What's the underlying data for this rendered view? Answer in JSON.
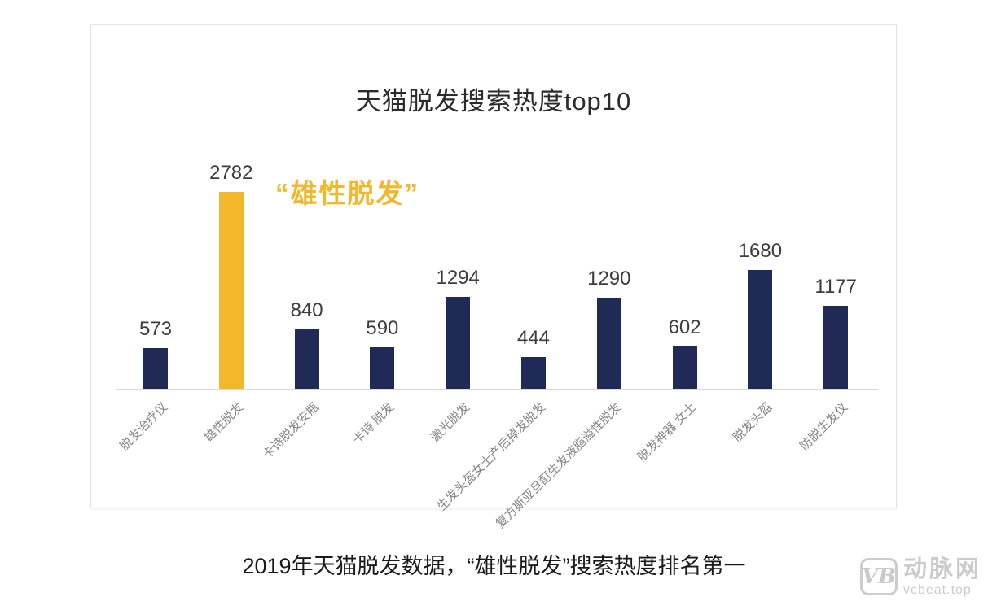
{
  "chart_data": {
    "type": "bar",
    "title": "天猫脱发搜索热度top10",
    "categories": [
      "脱发治疗仪",
      "雄性脱发",
      "卡诗脱发安瓶",
      "卡诗 脱发",
      "激光脱发",
      "生发头盔女士产后掉发脱发",
      "复方斯亚旦酊生发液脂溢性脱发",
      "脱发神器 女士",
      "脱发头盔",
      "防脱生发仪"
    ],
    "values": [
      573,
      2782,
      840,
      590,
      1294,
      444,
      1290,
      602,
      1680,
      1177
    ],
    "value_labels_shown": true,
    "highlight_index": 1,
    "annotation": "“雄性脱发”",
    "bar_color": "#1f2a56",
    "highlight_color": "#f3b72b",
    "annotation_color": "#f3b72b",
    "ylim": [
      0,
      2782
    ],
    "grid": false,
    "legend": "none",
    "x_tick_rotation_deg": 45
  },
  "caption": "2019年天猫脱发数据，“雄性脱发”搜索热度排名第一",
  "watermark": {
    "logo_text": "VB",
    "brand": "动脉网",
    "domain": "vcbeat.top"
  }
}
